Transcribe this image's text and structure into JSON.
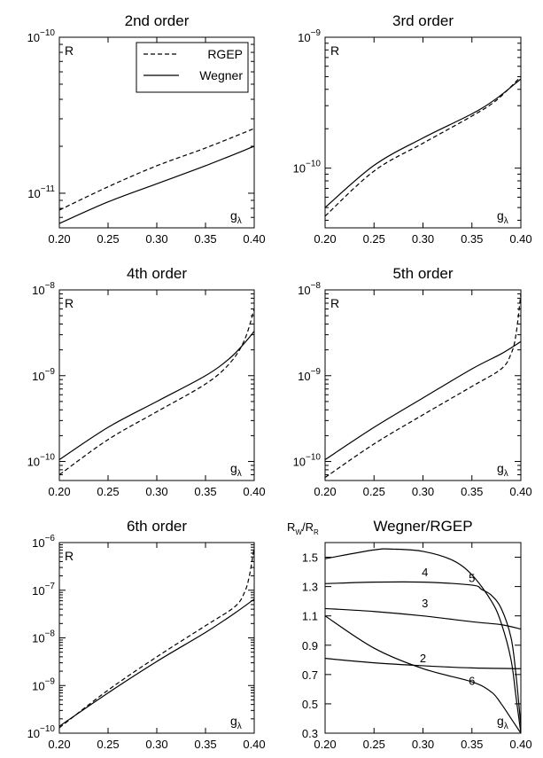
{
  "chart_data": [
    {
      "type": "line",
      "title": "2nd order",
      "corner_label": "R",
      "x_label": "g",
      "x_label_sub": "λ",
      "xlim": [
        0.2,
        0.4
      ],
      "x_ticks": [
        "0.20",
        "0.25",
        "0.30",
        "0.35",
        "0.40"
      ],
      "y_log": true,
      "ylim": [
        6e-12,
        1e-10
      ],
      "y_ticks": [
        {
          "value": 1e-11,
          "mantissa": "10",
          "exp": "−11"
        },
        {
          "value": 1e-10,
          "mantissa": "10",
          "exp": "−10"
        }
      ],
      "legend": {
        "position": "top-right",
        "entries": [
          {
            "name": "RGEP",
            "style": "dashed"
          },
          {
            "name": "Wegner",
            "style": "solid"
          }
        ]
      },
      "series": [
        {
          "name": "RGEP",
          "style": "dashed",
          "x": [
            0.2,
            0.25,
            0.3,
            0.35,
            0.4
          ],
          "y": [
            7.8e-12,
            1.1e-11,
            1.5e-11,
            1.95e-11,
            2.6e-11
          ]
        },
        {
          "name": "Wegner",
          "style": "solid",
          "x": [
            0.2,
            0.25,
            0.3,
            0.35,
            0.4
          ],
          "y": [
            6.4e-12,
            8.8e-12,
            1.15e-11,
            1.5e-11,
            2e-11
          ]
        }
      ]
    },
    {
      "type": "line",
      "title": "3rd order",
      "corner_label": "R",
      "x_label": "g",
      "x_label_sub": "λ",
      "xlim": [
        0.2,
        0.4
      ],
      "x_ticks": [
        "0.20",
        "0.25",
        "0.30",
        "0.35",
        "0.40"
      ],
      "y_log": true,
      "ylim": [
        3.5e-11,
        1e-09
      ],
      "y_ticks": [
        {
          "value": 1e-10,
          "mantissa": "10",
          "exp": "−10"
        },
        {
          "value": 1e-09,
          "mantissa": "10",
          "exp": "−9"
        }
      ],
      "series": [
        {
          "name": "RGEP",
          "style": "dashed",
          "x": [
            0.2,
            0.25,
            0.3,
            0.35,
            0.375,
            0.4
          ],
          "y": [
            4.3e-11,
            9.5e-11,
            1.55e-10,
            2.5e-10,
            3.3e-10,
            5e-10
          ]
        },
        {
          "name": "Wegner",
          "style": "solid",
          "x": [
            0.2,
            0.25,
            0.3,
            0.35,
            0.375,
            0.4
          ],
          "y": [
            5e-11,
            1.05e-10,
            1.7e-10,
            2.6e-10,
            3.4e-10,
            4.8e-10
          ]
        }
      ]
    },
    {
      "type": "line",
      "title": "4th order",
      "corner_label": "R",
      "x_label": "g",
      "x_label_sub": "λ",
      "xlim": [
        0.2,
        0.4
      ],
      "x_ticks": [
        "0.20",
        "0.25",
        "0.30",
        "0.35",
        "0.40"
      ],
      "y_log": true,
      "ylim": [
        6e-11,
        1e-08
      ],
      "y_ticks": [
        {
          "value": 1e-10,
          "mantissa": "10",
          "exp": "−10"
        },
        {
          "value": 1e-09,
          "mantissa": "10",
          "exp": "−9"
        },
        {
          "value": 1e-08,
          "mantissa": "10",
          "exp": "−8"
        }
      ],
      "series": [
        {
          "name": "RGEP",
          "style": "dashed",
          "x": [
            0.2,
            0.25,
            0.3,
            0.35,
            0.375,
            0.39,
            0.4
          ],
          "y": [
            7e-11,
            1.8e-10,
            3.8e-10,
            8e-10,
            1.4e-09,
            2.6e-09,
            6e-09
          ]
        },
        {
          "name": "Wegner",
          "style": "solid",
          "x": [
            0.2,
            0.25,
            0.3,
            0.35,
            0.375,
            0.39,
            0.4
          ],
          "y": [
            1.05e-10,
            2.5e-10,
            5e-10,
            1e-09,
            1.6e-09,
            2.4e-09,
            3.3e-09
          ]
        }
      ]
    },
    {
      "type": "line",
      "title": "5th order",
      "corner_label": "R",
      "x_label": "g",
      "x_label_sub": "λ",
      "xlim": [
        0.2,
        0.4
      ],
      "x_ticks": [
        "0.20",
        "0.25",
        "0.30",
        "0.35",
        "0.40"
      ],
      "y_log": true,
      "ylim": [
        6e-11,
        1e-08
      ],
      "y_ticks": [
        {
          "value": 1e-10,
          "mantissa": "10",
          "exp": "−10"
        },
        {
          "value": 1e-09,
          "mantissa": "10",
          "exp": "−9"
        },
        {
          "value": 1e-08,
          "mantissa": "10",
          "exp": "−8"
        }
      ],
      "series": [
        {
          "name": "RGEP",
          "style": "dashed",
          "x": [
            0.2,
            0.25,
            0.3,
            0.35,
            0.38,
            0.39,
            0.395,
            0.4
          ],
          "y": [
            6.5e-11,
            1.6e-10,
            3.5e-10,
            7.5e-10,
            1.2e-09,
            1.8e-09,
            3e-09,
            9e-09
          ]
        },
        {
          "name": "Wegner",
          "style": "solid",
          "x": [
            0.2,
            0.25,
            0.3,
            0.35,
            0.38,
            0.4
          ],
          "y": [
            1.05e-10,
            2.5e-10,
            5.5e-10,
            1.2e-09,
            1.8e-09,
            2.5e-09
          ]
        }
      ]
    },
    {
      "type": "line",
      "title": "6th order",
      "corner_label": "R",
      "x_label": "g",
      "x_label_sub": "λ",
      "xlim": [
        0.2,
        0.4
      ],
      "x_ticks": [
        "0.20",
        "0.25",
        "0.30",
        "0.35",
        "0.40"
      ],
      "y_log": true,
      "ylim": [
        1e-10,
        1e-06
      ],
      "y_ticks": [
        {
          "value": 1e-10,
          "mantissa": "10",
          "exp": "−10"
        },
        {
          "value": 1e-09,
          "mantissa": "10",
          "exp": "−9"
        },
        {
          "value": 1e-08,
          "mantissa": "10",
          "exp": "−8"
        },
        {
          "value": 1e-07,
          "mantissa": "10",
          "exp": "−7"
        },
        {
          "value": 1e-06,
          "mantissa": "10",
          "exp": "−6"
        }
      ],
      "series": [
        {
          "name": "RGEP",
          "style": "dashed",
          "x": [
            0.2,
            0.25,
            0.3,
            0.35,
            0.38,
            0.39,
            0.395,
            0.4
          ],
          "y": [
            1.3e-10,
            8e-10,
            4e-09,
            1.8e-08,
            4.5e-08,
            9e-08,
            2e-07,
            8e-07
          ]
        },
        {
          "name": "Wegner",
          "style": "solid",
          "x": [
            0.2,
            0.25,
            0.3,
            0.35,
            0.38,
            0.4
          ],
          "y": [
            1.4e-10,
            7e-10,
            3.2e-09,
            1.3e-08,
            3.3e-08,
            6.5e-08
          ]
        }
      ]
    },
    {
      "type": "line",
      "title": "Wegner/RGEP",
      "y_label": "R",
      "y_label_sub_1": "W",
      "y_label_mid": "/R",
      "y_label_sub_2": "R",
      "x_label": "g",
      "x_label_sub": "λ",
      "xlim": [
        0.2,
        0.4
      ],
      "x_ticks": [
        "0.20",
        "0.25",
        "0.30",
        "0.35",
        "0.40"
      ],
      "y_log": false,
      "ylim": [
        0.3,
        1.6
      ],
      "y_ticks": [
        {
          "value": 0.3,
          "label": "0.3"
        },
        {
          "value": 0.5,
          "label": "0.5"
        },
        {
          "value": 0.7,
          "label": "0.7"
        },
        {
          "value": 0.9,
          "label": "0.9"
        },
        {
          "value": 1.1,
          "label": "1.1"
        },
        {
          "value": 1.3,
          "label": "1.3"
        },
        {
          "value": 1.5,
          "label": "1.5"
        }
      ],
      "series": [
        {
          "name": "2",
          "label_at": [
            0.3,
            0.785
          ],
          "style": "solid",
          "x": [
            0.2,
            0.25,
            0.3,
            0.35,
            0.4
          ],
          "y": [
            0.81,
            0.78,
            0.76,
            0.745,
            0.74
          ]
        },
        {
          "name": "3",
          "label_at": [
            0.302,
            1.16
          ],
          "style": "solid",
          "x": [
            0.2,
            0.25,
            0.3,
            0.35,
            0.38,
            0.4
          ],
          "y": [
            1.15,
            1.13,
            1.1,
            1.06,
            1.04,
            1.01
          ]
        },
        {
          "name": "4",
          "label_at": [
            0.302,
            1.37
          ],
          "style": "solid",
          "x": [
            0.2,
            0.25,
            0.3,
            0.35,
            0.36,
            0.37,
            0.38,
            0.39,
            0.395,
            0.4
          ],
          "y": [
            1.32,
            1.33,
            1.33,
            1.31,
            1.28,
            1.24,
            1.15,
            0.95,
            0.7,
            0.35
          ]
        },
        {
          "name": "5",
          "label_at": [
            0.35,
            1.33
          ],
          "style": "solid",
          "x": [
            0.2,
            0.25,
            0.27,
            0.3,
            0.33,
            0.35,
            0.37,
            0.38,
            0.39,
            0.395,
            0.4
          ],
          "y": [
            1.49,
            1.55,
            1.555,
            1.54,
            1.48,
            1.38,
            1.2,
            1.05,
            0.8,
            0.55,
            0.3
          ]
        },
        {
          "name": "6",
          "label_at": [
            0.35,
            0.63
          ],
          "style": "solid",
          "x": [
            0.2,
            0.25,
            0.3,
            0.35,
            0.37,
            0.38,
            0.39,
            0.4
          ],
          "y": [
            1.1,
            0.88,
            0.74,
            0.65,
            0.58,
            0.5,
            0.4,
            0.3
          ]
        }
      ]
    }
  ]
}
